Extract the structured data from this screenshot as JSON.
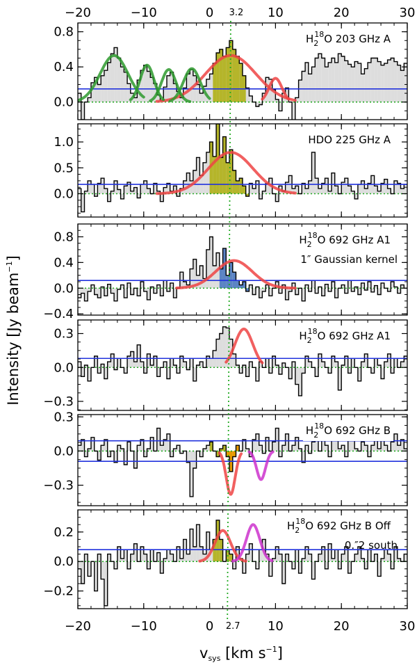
{
  "chart_data": {
    "type": "line",
    "shared_x_axis": {
      "label_prefix": "v",
      "label_sub": "sys",
      "label_suffix": " [km s",
      "label_sup": "−1",
      "label_close": "]",
      "xlim": [
        -20,
        30
      ],
      "ticks": [
        -20,
        -10,
        0,
        10,
        20,
        30
      ],
      "tick_labels": [
        "−20",
        "−10",
        "0",
        "10",
        "20",
        "30"
      ]
    },
    "y_axis_label": "Intensity [Jy beam",
    "y_axis_label_sup": "−1",
    "y_axis_label_close": "]",
    "reference_lines": {
      "top_value": 3.2,
      "top_label": "3.2",
      "bottom_value": 2.7,
      "bottom_label": "2.7"
    },
    "colors": {
      "spectrum": "#000000",
      "fill": "#dddddd",
      "continuum": "#2233dd",
      "zero": "#22aa22",
      "fit_red": "#ee4444",
      "fit_green": "#2e9a2e",
      "fit_magenta": "#cc33cc",
      "olive": "#b5b52a",
      "steelblue": "#5b84c4",
      "orange": "#e69a00"
    },
    "panels": [
      {
        "title_pre": "H",
        "title_sub": "2",
        "title_sup": "18",
        "title_post": "O 203 GHz A",
        "ylim": [
          -0.2,
          0.9
        ],
        "yticks": [
          0.0,
          0.4,
          0.8
        ],
        "ytick_labels": [
          "0.0",
          "0.4",
          "0.8"
        ],
        "continuum": [
          0.15
        ],
        "fills": [
          {
            "x0": 0.5,
            "x1": 5.5,
            "color": "olive"
          }
        ],
        "fits": [
          {
            "type": "gaussian",
            "amp": 0.53,
            "center": 3.2,
            "fwhm": 9.0,
            "baseline": 0.0,
            "color": "fit_red",
            "range": [
              -8,
              13
            ]
          },
          {
            "type": "gaussian",
            "amp": 0.27,
            "center": 10.0,
            "fwhm": 2.3,
            "baseline": 0.0,
            "color": "fit_red",
            "range": [
              8,
              12
            ]
          },
          {
            "type": "gaussian",
            "amp": 0.53,
            "center": -14.5,
            "fwhm": 5.0,
            "baseline": 0.0,
            "color": "fit_green",
            "range": [
              -20,
              -10
            ]
          },
          {
            "type": "gaussian",
            "amp": 0.42,
            "center": -9.5,
            "fwhm": 2.5,
            "baseline": 0.0,
            "color": "fit_green",
            "range": [
              -12,
              -7
            ]
          },
          {
            "type": "gaussian",
            "amp": 0.37,
            "center": -6.2,
            "fwhm": 2.6,
            "baseline": 0.0,
            "color": "fit_green",
            "range": [
              -9,
              -3
            ]
          },
          {
            "type": "gaussian",
            "amp": 0.38,
            "center": -2.7,
            "fwhm": 3.0,
            "baseline": 0.0,
            "color": "fit_green",
            "range": [
              -6,
              0
            ]
          }
        ],
        "spectrum": [
          0.1,
          -0.2,
          0.0,
          0.05,
          0.22,
          0.28,
          0.2,
          0.3,
          0.36,
          0.45,
          0.55,
          0.62,
          0.5,
          0.4,
          0.34,
          0.21,
          0.1,
          0.05,
          0.25,
          0.36,
          0.42,
          0.35,
          0.28,
          0.21,
          0.08,
          0.02,
          0.17,
          0.3,
          0.34,
          0.21,
          0.12,
          0.05,
          0.16,
          0.32,
          0.37,
          0.3,
          0.2,
          0.1,
          0.18,
          0.26,
          0.32,
          0.44,
          0.56,
          0.6,
          0.52,
          0.62,
          0.7,
          0.6,
          0.52,
          0.44,
          0.3,
          0.16,
          0.07,
          0.0,
          -0.05,
          -0.03,
          0.1,
          0.28,
          0.26,
          0.14,
          0.03,
          -0.1,
          0.1,
          0.16,
          0.0,
          -0.28,
          0.05,
          0.25,
          0.35,
          0.45,
          0.32,
          0.4,
          0.5,
          0.55,
          0.5,
          0.4,
          0.45,
          0.5,
          0.45,
          0.55,
          0.52,
          0.47,
          0.43,
          0.4,
          0.46,
          0.44,
          0.32,
          0.38,
          0.45,
          0.5,
          0.5,
          0.46,
          0.42,
          0.44,
          0.48,
          0.5,
          0.46,
          0.42,
          0.36,
          0.44
        ]
      },
      {
        "title_pre": "HDO 225 GHz A",
        "title_sub": "",
        "title_sup": "",
        "title_post": "",
        "ylim": [
          -0.45,
          1.35
        ],
        "yticks": [
          0.0,
          0.5,
          1.0
        ],
        "ytick_labels": [
          "0.0",
          "0.5",
          "1.0"
        ],
        "continuum": [
          0.18
        ],
        "fills": [
          {
            "x0": 0.0,
            "x1": 6.0,
            "color": "olive"
          }
        ],
        "fits": [
          {
            "type": "gaussian",
            "amp": 0.8,
            "center": 3.2,
            "fwhm": 8.0,
            "baseline": 0.0,
            "color": "fit_red",
            "range": [
              -8,
              13
            ]
          }
        ],
        "spectrum": [
          0.1,
          -0.35,
          0.05,
          0.25,
          0.18,
          -0.05,
          0.2,
          0.3,
          0.1,
          -0.15,
          0.05,
          0.25,
          0.08,
          -0.1,
          0.15,
          0.22,
          0.05,
          0.12,
          -0.08,
          0.18,
          0.25,
          0.1,
          0.0,
          0.2,
          0.05,
          -0.15,
          0.12,
          0.2,
          0.05,
          0.15,
          -0.05,
          0.1,
          0.25,
          0.4,
          0.25,
          0.45,
          0.7,
          0.35,
          0.6,
          0.8,
          1.0,
          0.72,
          1.35,
          0.7,
          1.1,
          0.6,
          0.85,
          0.45,
          0.25,
          0.3,
          0.15,
          -0.05,
          0.2,
          0.1,
          0.25,
          -0.1,
          0.05,
          0.2,
          0.3,
          0.0,
          -0.15,
          0.15,
          0.05,
          0.22,
          0.35,
          0.1,
          0.15,
          0.0,
          0.2,
          0.1,
          0.25,
          0.8,
          0.3,
          0.1,
          0.2,
          0.3,
          0.05,
          0.4,
          0.15,
          0.0,
          0.22,
          0.3,
          0.15,
          0.05,
          -0.1,
          0.18,
          0.25,
          0.1,
          0.2,
          0.35,
          0.15,
          0.05,
          0.2,
          0.28,
          0.1,
          0.0,
          0.25,
          0.2,
          0.1,
          0.18
        ]
      },
      {
        "title_pre": "H",
        "title_sub": "2",
        "title_sup": "18",
        "title_post": "O 692 GHz A1",
        "subtitle": "1″ Gaussian kernel",
        "ylim": [
          -0.42,
          1.0
        ],
        "yticks": [
          -0.4,
          0.0,
          0.4,
          0.8
        ],
        "ytick_labels": [
          "−0.4",
          "0.0",
          "0.4",
          "0.8"
        ],
        "continuum": [
          0.12
        ],
        "fills": [
          {
            "x0": 1.5,
            "x1": 6.0,
            "color": "steelblue"
          }
        ],
        "fits": [
          {
            "type": "gaussian",
            "amp": 0.43,
            "center": 3.7,
            "fwhm": 6.5,
            "baseline": 0.0,
            "color": "fit_red",
            "range": [
              -5,
              13
            ]
          }
        ],
        "spectrum": [
          -0.15,
          -0.08,
          -0.2,
          -0.05,
          0.05,
          -0.1,
          -0.15,
          0.02,
          -0.12,
          0.06,
          -0.08,
          -0.2,
          -0.02,
          0.05,
          -0.15,
          0.08,
          -0.1,
          0.0,
          -0.12,
          0.1,
          -0.05,
          -0.18,
          0.02,
          -0.08,
          0.05,
          -0.12,
          0.12,
          -0.05,
          0.08,
          -0.15,
          0.0,
          0.25,
          0.1,
          0.05,
          0.3,
          0.45,
          0.2,
          0.35,
          0.15,
          0.6,
          0.8,
          0.35,
          0.55,
          0.3,
          0.62,
          0.2,
          0.4,
          0.25,
          0.12,
          0.05,
          0.1,
          -0.05,
          0.05,
          -0.1,
          0.02,
          -0.15,
          -0.05,
          0.05,
          -0.12,
          0.0,
          0.1,
          -0.08,
          0.05,
          -0.18,
          -0.05,
          0.08,
          -0.1,
          0.0,
          -0.2,
          0.05,
          -0.05,
          0.12,
          -0.08,
          0.02,
          -0.12,
          0.06,
          -0.05,
          0.1,
          -0.15,
          0.0,
          0.05,
          -0.08,
          0.12,
          -0.05,
          0.02,
          -0.1,
          0.08,
          -0.03,
          0.1,
          -0.06,
          0.04,
          -0.1,
          0.08,
          0.0,
          -0.05,
          0.1,
          0.02,
          -0.08,
          0.05,
          0.0
        ]
      },
      {
        "title_pre": "H",
        "title_sub": "2",
        "title_sup": "18",
        "title_post": "O 692 GHz A1",
        "ylim": [
          -0.38,
          0.42
        ],
        "yticks": [
          -0.3,
          0.0,
          0.3
        ],
        "ytick_labels": [
          "−0.3",
          "0.0",
          "0.3"
        ],
        "continuum": [
          0.08
        ],
        "fills": [],
        "fits": [
          {
            "type": "gaussian",
            "amp": 0.34,
            "center": 5.2,
            "fwhm": 3.2,
            "baseline": 0.0,
            "color": "fit_red",
            "range": [
              2.5,
              8
            ]
          }
        ],
        "spectrum": [
          0.05,
          -0.08,
          0.02,
          -0.12,
          0.0,
          0.1,
          -0.05,
          0.03,
          -0.1,
          0.05,
          0.12,
          -0.02,
          0.08,
          0.0,
          -0.05,
          0.1,
          0.14,
          0.05,
          0.2,
          0.05,
          -0.05,
          0.12,
          0.02,
          0.1,
          -0.08,
          0.0,
          0.05,
          -0.1,
          0.08,
          0.02,
          -0.05,
          0.1,
          0.05,
          -0.02,
          0.08,
          -0.12,
          0.02,
          0.05,
          0.0,
          0.1,
          0.08,
          0.15,
          0.25,
          0.3,
          0.36,
          0.35,
          0.25,
          0.12,
          0.02,
          -0.05,
          0.02,
          -0.08,
          0.05,
          0.0,
          -0.12,
          0.05,
          0.0,
          0.08,
          -0.05,
          0.1,
          0.02,
          -0.06,
          0.04,
          0.0,
          -0.1,
          0.05,
          -0.15,
          -0.25,
          -0.05,
          0.1,
          0.05,
          0.0,
          -0.08,
          0.12,
          0.05,
          0.0,
          -0.05,
          0.1,
          0.05,
          -0.2,
          0.02,
          0.1,
          -0.05,
          0.08,
          0.0,
          -0.12,
          0.05,
          0.12,
          0.0,
          -0.05,
          0.08,
          0.02,
          -0.1,
          0.05,
          0.12,
          -0.05,
          0.08,
          0.0,
          0.05,
          0.1
        ]
      },
      {
        "title_pre": "H",
        "title_sub": "2",
        "title_sup": "18",
        "title_post": "O 692 GHz B",
        "ylim": [
          -0.48,
          0.32
        ],
        "yticks": [
          -0.3,
          0.0,
          0.3
        ],
        "ytick_labels": [
          "−0.3",
          "0.0",
          "0.3"
        ],
        "continuum": [
          0.09,
          -0.09
        ],
        "fills": [
          {
            "x0": 0.0,
            "x1": 2.5,
            "color": "olive"
          },
          {
            "x0": 2.5,
            "x1": 4.5,
            "color": "orange"
          }
        ],
        "fits": [
          {
            "type": "gaussian",
            "amp": -0.38,
            "center": 3.2,
            "fwhm": 1.6,
            "baseline": 0.0,
            "color": "fit_red",
            "range": [
              1.5,
              4.8
            ]
          },
          {
            "type": "gaussian",
            "amp": -0.25,
            "center": 7.8,
            "fwhm": 1.6,
            "baseline": 0.0,
            "color": "fit_magenta",
            "range": [
              6.0,
              9.6
            ]
          }
        ],
        "spectrum": [
          0.05,
          0.1,
          -0.05,
          0.02,
          0.12,
          0.0,
          -0.08,
          0.05,
          0.1,
          -0.05,
          0.0,
          -0.1,
          0.05,
          0.02,
          -0.12,
          0.08,
          0.0,
          -0.15,
          0.05,
          0.1,
          -0.05,
          0.02,
          0.12,
          0.0,
          0.2,
          0.05,
          0.1,
          0.15,
          -0.05,
          0.02,
          0.05,
          -0.02,
          0.0,
          -0.1,
          -0.4,
          -0.15,
          0.0,
          -0.05,
          0.02,
          0.05,
          0.08,
          0.0,
          -0.05,
          0.02,
          0.05,
          -0.05,
          -0.18,
          -0.05,
          0.05,
          0.0,
          0.1,
          0.02,
          -0.05,
          0.1,
          0.15,
          0.05,
          -0.02,
          0.12,
          0.0,
          0.08,
          0.2,
          -0.05,
          0.05,
          0.15,
          0.0,
          0.05,
          0.12,
          0.02,
          -0.1,
          0.05,
          -0.02,
          0.08,
          0.15,
          0.0,
          0.1,
          0.05,
          -0.05,
          0.1,
          0.15,
          0.02,
          0.05,
          -0.05,
          0.1,
          0.12,
          0.02,
          0.0,
          0.08,
          0.05,
          -0.05,
          0.05,
          0.1,
          0.02,
          0.12,
          0.05,
          0.0,
          0.08,
          0.15,
          0.05,
          0.1,
          0.02
        ]
      },
      {
        "title_pre": "H",
        "title_sub": "2",
        "title_sup": "18",
        "title_post": "O 692 GHz B Off",
        "subtitle": "0.″2 south",
        "ylim": [
          -0.32,
          0.35
        ],
        "yticks": [
          -0.2,
          0.0,
          0.2
        ],
        "ytick_labels": [
          "−0.2",
          "0.0",
          "0.2"
        ],
        "continuum": [
          0.08
        ],
        "fills": [
          {
            "x0": 0.5,
            "x1": 3.5,
            "color": "olive"
          }
        ],
        "fits": [
          {
            "type": "gaussian",
            "amp": 0.21,
            "center": 2.0,
            "fwhm": 2.8,
            "baseline": 0.0,
            "color": "fit_red",
            "range": [
              -1.5,
              5.5
            ]
          },
          {
            "type": "gaussian",
            "amp": 0.25,
            "center": 6.6,
            "fwhm": 2.4,
            "baseline": 0.0,
            "color": "fit_magenta",
            "range": [
              3.5,
              9.5
            ]
          }
        ],
        "spectrum": [
          -0.05,
          -0.15,
          0.05,
          -0.1,
          0.0,
          -0.2,
          0.05,
          -0.12,
          -0.3,
          0.05,
          0.0,
          -0.05,
          0.1,
          0.02,
          0.08,
          -0.05,
          0.05,
          0.12,
          0.0,
          0.1,
          0.05,
          -0.05,
          0.08,
          0.0,
          0.06,
          -0.08,
          0.02,
          0.08,
          0.05,
          0.0,
          0.1,
          0.02,
          0.15,
          0.05,
          0.22,
          0.1,
          0.25,
          0.1,
          0.05,
          0.2,
          0.08,
          0.15,
          0.28,
          0.15,
          0.0,
          0.08,
          0.05,
          -0.05,
          0.1,
          0.02,
          -0.08,
          0.05,
          0.12,
          0.0,
          -0.05,
          0.08,
          0.15,
          0.05,
          -0.1,
          0.02,
          0.1,
          0.05,
          -0.15,
          0.05,
          0.0,
          -0.05,
          0.08,
          -0.08,
          0.02,
          0.1,
          0.05,
          -0.12,
          0.0,
          0.05,
          0.1,
          -0.05,
          0.12,
          0.02,
          0.08,
          -0.05,
          0.05,
          0.1,
          -0.08,
          0.0,
          0.05,
          0.1,
          0.02,
          -0.05,
          0.08,
          0.0,
          0.05,
          -0.1,
          0.02,
          0.08,
          0.05,
          -0.05,
          0.1,
          0.02,
          0.0,
          0.05
        ]
      }
    ]
  }
}
